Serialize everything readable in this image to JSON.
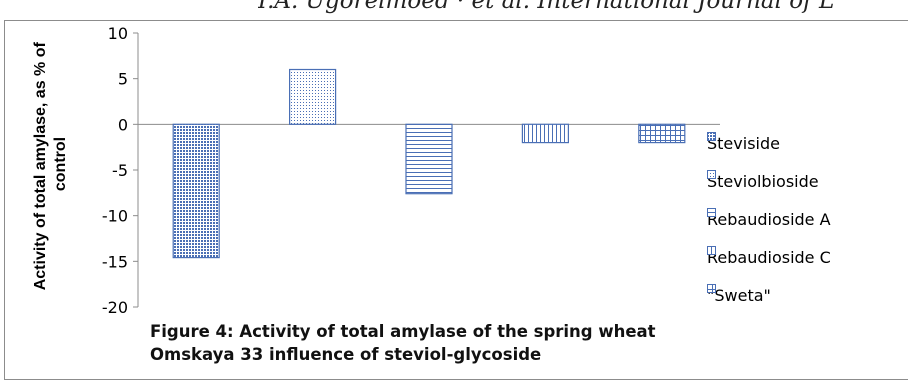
{
  "header_text": "I.A. Ugorelmoed · et al. International Journal of L",
  "chart_data": {
    "type": "bar",
    "title": "Figure 4: Activity of total amylase of the spring wheat Omskaya 33 influence of steviol-glycoside",
    "caption_lines": [
      "Figure 4: Activity of total amylase of the spring wheat",
      "Omskaya 33 influence of steviol-glycoside"
    ],
    "ylabel_lines": [
      "Activity of total amylase, as % of",
      "control"
    ],
    "ylim": [
      -20,
      10
    ],
    "yticks": [
      10,
      5,
      0,
      -5,
      -10,
      -15,
      -20
    ],
    "grid": false,
    "legend_position": "right",
    "series": [
      {
        "name": "Steviside",
        "value": -14.6,
        "pattern": "dots",
        "color": "#4a6fb5"
      },
      {
        "name": "Steviolbioside",
        "value": 6.0,
        "pattern": "fine-dots",
        "color": "#4a6fb5"
      },
      {
        "name": "Rebaudioside A",
        "value": -7.6,
        "pattern": "horizontal",
        "color": "#4a6fb5"
      },
      {
        "name": "Rebaudioside C",
        "value": -2.0,
        "pattern": "vertical",
        "color": "#4a6fb5"
      },
      {
        "name": "\"Sweta\"",
        "value": -2.0,
        "pattern": "grid",
        "color": "#4a6fb5"
      }
    ]
  }
}
